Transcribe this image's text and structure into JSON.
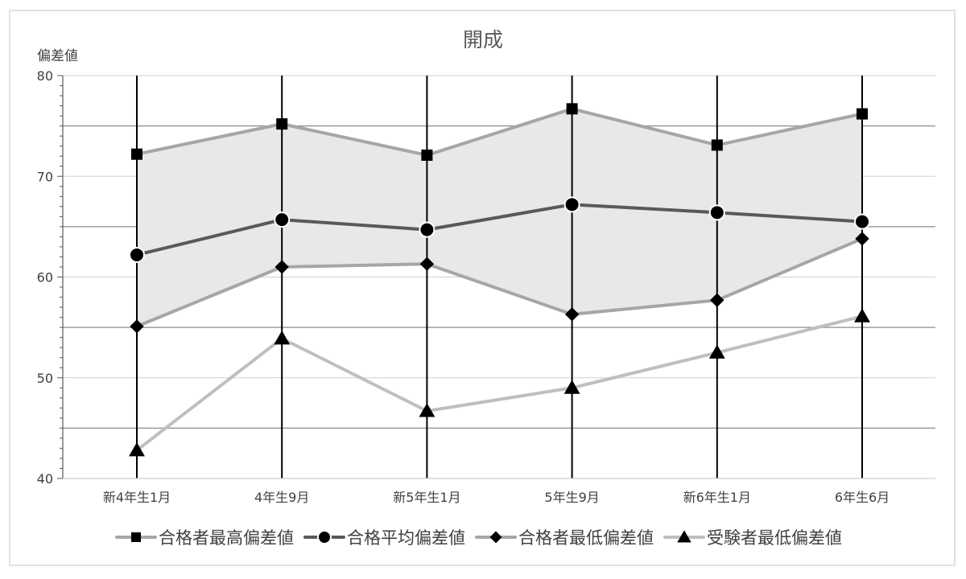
{
  "chart_data": {
    "type": "line",
    "title": "開成",
    "ylabel": "偏差値",
    "xlabel": "",
    "ylim": [
      40,
      80
    ],
    "yticks": [
      40,
      50,
      60,
      70,
      80
    ],
    "categories": [
      "新4年生1月",
      "4年生9月",
      "新5年生1月",
      "5年生9月",
      "新6年生1月",
      "6年生6月"
    ],
    "series": [
      {
        "name": "合格者最高偏差値",
        "values": [
          72.2,
          75.2,
          72.1,
          76.7,
          73.1,
          76.2
        ],
        "color": "#a6a6a6",
        "marker": "square"
      },
      {
        "name": "合格平均偏差値",
        "values": [
          62.2,
          65.7,
          64.7,
          67.2,
          66.4,
          65.5
        ],
        "color": "#595959",
        "marker": "circle"
      },
      {
        "name": "合格者最低偏差値",
        "values": [
          55.1,
          61.0,
          61.3,
          56.3,
          57.7,
          63.8
        ],
        "color": "#a6a6a6",
        "marker": "diamond"
      },
      {
        "name": "受験者最低偏差値",
        "values": [
          42.8,
          53.9,
          46.7,
          49.0,
          52.5,
          56.1
        ],
        "color": "#bfbfbf",
        "marker": "triangle"
      }
    ],
    "band": {
      "between": [
        "合格者最高偏差値",
        "合格者最低偏差値"
      ],
      "color": "#e8e8e9"
    },
    "grid": true,
    "legend_position": "bottom"
  }
}
